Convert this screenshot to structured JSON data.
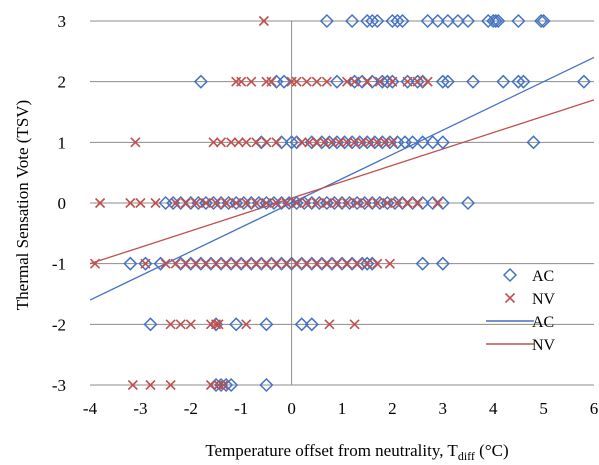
{
  "chart_data": {
    "type": "scatter",
    "xlabel": "Temperature offset from neutrality, T",
    "xlabel_sub": "diff",
    "xlabel_unit": " (°C)",
    "ylabel": "Thermal Sensation Vote (TSV)",
    "xlim": [
      -4,
      6
    ],
    "ylim": [
      -3,
      3
    ],
    "x_ticks": [
      -4,
      -3,
      -2,
      -1,
      0,
      1,
      2,
      3,
      4,
      5,
      6
    ],
    "y_ticks": [
      -3,
      -2,
      -1,
      0,
      1,
      2,
      3
    ],
    "grid": "horizontal",
    "legend_position": "bottom-right",
    "series": [
      {
        "name": "AC",
        "type": "scatter",
        "marker": "diamond",
        "color": "#4472C4",
        "points": [
          [
            0.7,
            3
          ],
          [
            1.2,
            3
          ],
          [
            1.5,
            3
          ],
          [
            1.6,
            3
          ],
          [
            1.7,
            3
          ],
          [
            2.0,
            3
          ],
          [
            2.1,
            3
          ],
          [
            2.2,
            3
          ],
          [
            2.7,
            3
          ],
          [
            2.9,
            3
          ],
          [
            3.1,
            3
          ],
          [
            3.3,
            3
          ],
          [
            3.5,
            3
          ],
          [
            3.9,
            3
          ],
          [
            4.0,
            3
          ],
          [
            4.05,
            3
          ],
          [
            4.1,
            3
          ],
          [
            4.5,
            3
          ],
          [
            4.95,
            3
          ],
          [
            5.0,
            3
          ],
          [
            -1.8,
            2
          ],
          [
            -0.3,
            2
          ],
          [
            -0.15,
            2
          ],
          [
            0.9,
            2
          ],
          [
            1.25,
            2
          ],
          [
            1.4,
            2
          ],
          [
            1.6,
            2
          ],
          [
            1.8,
            2
          ],
          [
            1.9,
            2
          ],
          [
            2.0,
            2
          ],
          [
            2.3,
            2
          ],
          [
            2.5,
            2
          ],
          [
            2.6,
            2
          ],
          [
            3.0,
            2
          ],
          [
            3.1,
            2
          ],
          [
            3.6,
            2
          ],
          [
            4.2,
            2
          ],
          [
            4.5,
            2
          ],
          [
            4.6,
            2
          ],
          [
            5.8,
            2
          ],
          [
            -0.6,
            1
          ],
          [
            -0.2,
            1
          ],
          [
            0.0,
            1
          ],
          [
            0.1,
            1
          ],
          [
            0.4,
            1
          ],
          [
            0.6,
            1
          ],
          [
            0.75,
            1
          ],
          [
            0.9,
            1
          ],
          [
            1.05,
            1
          ],
          [
            1.2,
            1
          ],
          [
            1.35,
            1
          ],
          [
            1.5,
            1
          ],
          [
            1.65,
            1
          ],
          [
            1.8,
            1
          ],
          [
            1.95,
            1
          ],
          [
            2.1,
            1
          ],
          [
            2.25,
            1
          ],
          [
            2.4,
            1
          ],
          [
            2.6,
            1
          ],
          [
            2.8,
            1
          ],
          [
            3.0,
            1
          ],
          [
            4.8,
            1
          ],
          [
            -2.5,
            0
          ],
          [
            -2.35,
            0
          ],
          [
            -2.2,
            0
          ],
          [
            -2.0,
            0
          ],
          [
            -1.85,
            0
          ],
          [
            -1.7,
            0
          ],
          [
            -1.55,
            0
          ],
          [
            -1.4,
            0
          ],
          [
            -1.25,
            0
          ],
          [
            -1.1,
            0
          ],
          [
            -0.95,
            0
          ],
          [
            -0.8,
            0
          ],
          [
            -0.65,
            0
          ],
          [
            -0.5,
            0
          ],
          [
            -0.35,
            0
          ],
          [
            -0.2,
            0
          ],
          [
            -0.05,
            0
          ],
          [
            0.1,
            0
          ],
          [
            0.25,
            0
          ],
          [
            0.4,
            0
          ],
          [
            0.55,
            0
          ],
          [
            0.7,
            0
          ],
          [
            0.85,
            0
          ],
          [
            1.0,
            0
          ],
          [
            1.15,
            0
          ],
          [
            1.3,
            0
          ],
          [
            1.45,
            0
          ],
          [
            1.6,
            0
          ],
          [
            1.75,
            0
          ],
          [
            1.9,
            0
          ],
          [
            2.05,
            0
          ],
          [
            2.2,
            0
          ],
          [
            2.4,
            0
          ],
          [
            2.6,
            0
          ],
          [
            2.8,
            0
          ],
          [
            3.0,
            0
          ],
          [
            3.5,
            0
          ],
          [
            -3.2,
            -1
          ],
          [
            -2.9,
            -1
          ],
          [
            -2.6,
            -1
          ],
          [
            -2.2,
            -1
          ],
          [
            -2.0,
            -1
          ],
          [
            -1.8,
            -1
          ],
          [
            -1.6,
            -1
          ],
          [
            -1.4,
            -1
          ],
          [
            -1.2,
            -1
          ],
          [
            -1.0,
            -1
          ],
          [
            -0.8,
            -1
          ],
          [
            -0.6,
            -1
          ],
          [
            -0.4,
            -1
          ],
          [
            -0.2,
            -1
          ],
          [
            0.0,
            -1
          ],
          [
            0.2,
            -1
          ],
          [
            0.4,
            -1
          ],
          [
            0.6,
            -1
          ],
          [
            0.8,
            -1
          ],
          [
            1.0,
            -1
          ],
          [
            1.2,
            -1
          ],
          [
            1.4,
            -1
          ],
          [
            1.5,
            -1
          ],
          [
            1.6,
            -1
          ],
          [
            2.6,
            -1
          ],
          [
            3.0,
            -1
          ],
          [
            -2.8,
            -2
          ],
          [
            -1.5,
            -2
          ],
          [
            -1.1,
            -2
          ],
          [
            -0.5,
            -2
          ],
          [
            0.2,
            -2
          ],
          [
            0.4,
            -2
          ],
          [
            -1.5,
            -3
          ],
          [
            -1.4,
            -3
          ],
          [
            -1.3,
            -3
          ],
          [
            -1.2,
            -3
          ],
          [
            -0.5,
            -3
          ]
        ]
      },
      {
        "name": "NV",
        "type": "scatter",
        "marker": "x",
        "color": "#C0504D",
        "points": [
          [
            -0.55,
            3
          ],
          [
            -1.1,
            2
          ],
          [
            -1.0,
            2
          ],
          [
            -0.8,
            2
          ],
          [
            -0.5,
            2
          ],
          [
            -0.4,
            2
          ],
          [
            0.0,
            2
          ],
          [
            0.1,
            2
          ],
          [
            0.3,
            2
          ],
          [
            0.5,
            2
          ],
          [
            0.7,
            2
          ],
          [
            1.1,
            2
          ],
          [
            1.25,
            2
          ],
          [
            1.5,
            2
          ],
          [
            1.75,
            2
          ],
          [
            2.0,
            2
          ],
          [
            2.3,
            2
          ],
          [
            2.5,
            2
          ],
          [
            2.7,
            2
          ],
          [
            -3.1,
            1
          ],
          [
            -1.55,
            1
          ],
          [
            -1.4,
            1
          ],
          [
            -1.2,
            1
          ],
          [
            -1.05,
            1
          ],
          [
            -0.9,
            1
          ],
          [
            -0.7,
            1
          ],
          [
            -0.5,
            1
          ],
          [
            -0.3,
            1
          ],
          [
            0.2,
            1
          ],
          [
            0.35,
            1
          ],
          [
            0.5,
            1
          ],
          [
            0.65,
            1
          ],
          [
            0.8,
            1
          ],
          [
            0.95,
            1
          ],
          [
            1.1,
            1
          ],
          [
            1.25,
            1
          ],
          [
            1.4,
            1
          ],
          [
            1.55,
            1
          ],
          [
            1.7,
            1
          ],
          [
            1.85,
            1
          ],
          [
            2.0,
            1
          ],
          [
            -3.8,
            0
          ],
          [
            -3.2,
            0
          ],
          [
            -3.0,
            0
          ],
          [
            -2.7,
            0
          ],
          [
            -2.3,
            0
          ],
          [
            -2.1,
            0
          ],
          [
            -1.9,
            0
          ],
          [
            -1.7,
            0
          ],
          [
            -1.5,
            0
          ],
          [
            -1.3,
            0
          ],
          [
            -1.1,
            0
          ],
          [
            -0.9,
            0
          ],
          [
            -0.7,
            0
          ],
          [
            -0.5,
            0
          ],
          [
            -0.3,
            0
          ],
          [
            -0.1,
            0
          ],
          [
            0.1,
            0
          ],
          [
            0.3,
            0
          ],
          [
            0.5,
            0
          ],
          [
            0.7,
            0
          ],
          [
            0.9,
            0
          ],
          [
            1.1,
            0
          ],
          [
            1.3,
            0
          ],
          [
            1.5,
            0
          ],
          [
            1.7,
            0
          ],
          [
            1.9,
            0
          ],
          [
            2.1,
            0
          ],
          [
            2.3,
            0
          ],
          [
            2.5,
            0
          ],
          [
            2.9,
            0
          ],
          [
            -3.9,
            -1
          ],
          [
            -2.9,
            -1
          ],
          [
            -2.5,
            -1
          ],
          [
            -2.3,
            -1
          ],
          [
            -2.1,
            -1
          ],
          [
            -1.9,
            -1
          ],
          [
            -1.7,
            -1
          ],
          [
            -1.5,
            -1
          ],
          [
            -1.3,
            -1
          ],
          [
            -1.1,
            -1
          ],
          [
            -0.9,
            -1
          ],
          [
            -0.7,
            -1
          ],
          [
            -0.5,
            -1
          ],
          [
            -0.3,
            -1
          ],
          [
            -0.1,
            -1
          ],
          [
            0.1,
            -1
          ],
          [
            0.3,
            -1
          ],
          [
            0.5,
            -1
          ],
          [
            0.7,
            -1
          ],
          [
            0.9,
            -1
          ],
          [
            1.1,
            -1
          ],
          [
            1.3,
            -1
          ],
          [
            1.5,
            -1
          ],
          [
            1.7,
            -1
          ],
          [
            1.95,
            -1
          ],
          [
            -2.4,
            -2
          ],
          [
            -2.2,
            -2
          ],
          [
            -2.0,
            -2
          ],
          [
            -1.6,
            -2
          ],
          [
            -1.5,
            -2
          ],
          [
            -1.45,
            -2
          ],
          [
            -0.9,
            -2
          ],
          [
            0.75,
            -2
          ],
          [
            1.25,
            -2
          ],
          [
            -3.15,
            -3
          ],
          [
            -2.8,
            -3
          ],
          [
            -2.4,
            -3
          ],
          [
            -1.6,
            -3
          ],
          [
            -1.45,
            -3
          ],
          [
            -1.35,
            -3
          ]
        ]
      },
      {
        "name": "AC",
        "type": "line",
        "color": "#4472C4",
        "points": [
          [
            -4,
            -1.6
          ],
          [
            6,
            2.4
          ]
        ]
      },
      {
        "name": "NV",
        "type": "line",
        "color": "#C0504D",
        "points": [
          [
            -4,
            -1.0
          ],
          [
            6,
            1.7
          ]
        ]
      }
    ]
  }
}
